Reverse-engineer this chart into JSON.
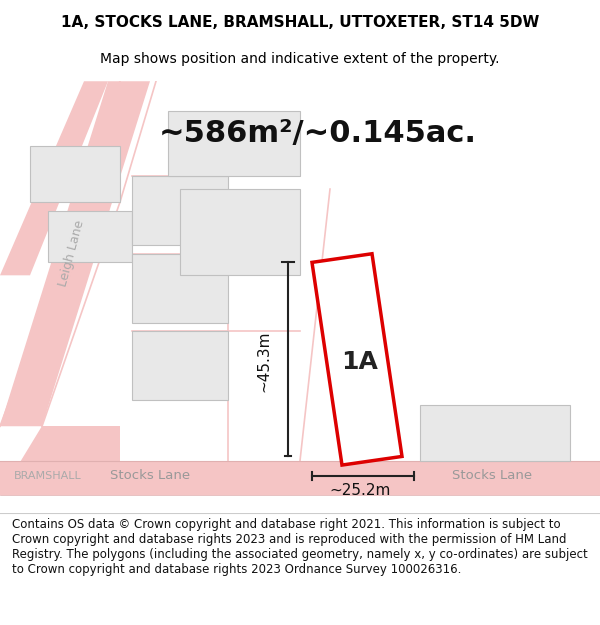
{
  "title_line1": "1A, STOCKS LANE, BRAMSHALL, UTTOXETER, ST14 5DW",
  "title_line2": "Map shows position and indicative extent of the property.",
  "area_text": "~586m²/~0.145ac.",
  "label_1a": "1A",
  "dim_vertical": "~45.3m",
  "dim_horizontal": "~25.2m",
  "road_label_left": "Stocks Lane",
  "road_label_right": "Stocks Lane",
  "locality_label": "BRAMSHALL",
  "street_label_leigh": "Leigh Lane",
  "footer": "Contains OS data © Crown copyright and database right 2021. This information is subject to Crown copyright and database rights 2023 and is reproduced with the permission of HM Land Registry. The polygons (including the associated geometry, namely x, y co-ordinates) are subject to Crown copyright and database rights 2023 Ordnance Survey 100026316.",
  "bg_color": "#ffffff",
  "map_bg": "#ffffff",
  "road_color": "#f5c5c5",
  "building_fill": "#e8e8e8",
  "building_stroke": "#c0c0c0",
  "highlight_fill": "#ffffff",
  "highlight_stroke": "#dd0000",
  "dim_line_color": "#222222",
  "road_line_color": "#cccccc",
  "title_fontsize": 11,
  "subtitle_fontsize": 10,
  "area_fontsize": 22,
  "label_fontsize": 18,
  "dim_fontsize": 11,
  "footer_fontsize": 8.5
}
